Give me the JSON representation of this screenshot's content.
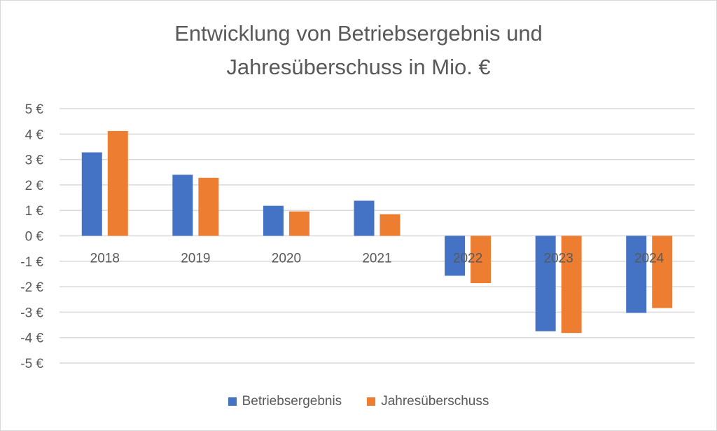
{
  "chart_data": {
    "type": "bar",
    "title": "Entwicklung von Betriebsergebnis und Jahresüberschuss in Mio. €",
    "title_lines": [
      "Entwicklung von Betriebsergebnis und",
      "Jahresüberschuss in Mio. €"
    ],
    "xlabel": "",
    "ylabel": "",
    "categories": [
      "2018",
      "2019",
      "2020",
      "2021",
      "2022",
      "2023",
      "2024"
    ],
    "series": [
      {
        "name": "Betriebsergebnis",
        "color": "#4472c4",
        "values": [
          3.28,
          2.4,
          1.18,
          1.38,
          -1.57,
          -3.75,
          -3.03
        ]
      },
      {
        "name": "Jahresüberschuss",
        "color": "#ed7d31",
        "values": [
          4.12,
          2.28,
          0.96,
          0.85,
          -1.86,
          -3.82,
          -2.84
        ]
      }
    ],
    "ylim": [
      -5,
      5
    ],
    "yticks": [
      5,
      4,
      3,
      2,
      1,
      0,
      -1,
      -2,
      -3,
      -4,
      -5
    ],
    "ytick_labels": [
      "5 €",
      "4 €",
      "3 €",
      "2 €",
      "1 €",
      "0 €",
      "-1 €",
      "-2 €",
      "-3 €",
      "-4 €",
      "-5 €"
    ],
    "grid": true,
    "legend_position": "bottom"
  }
}
